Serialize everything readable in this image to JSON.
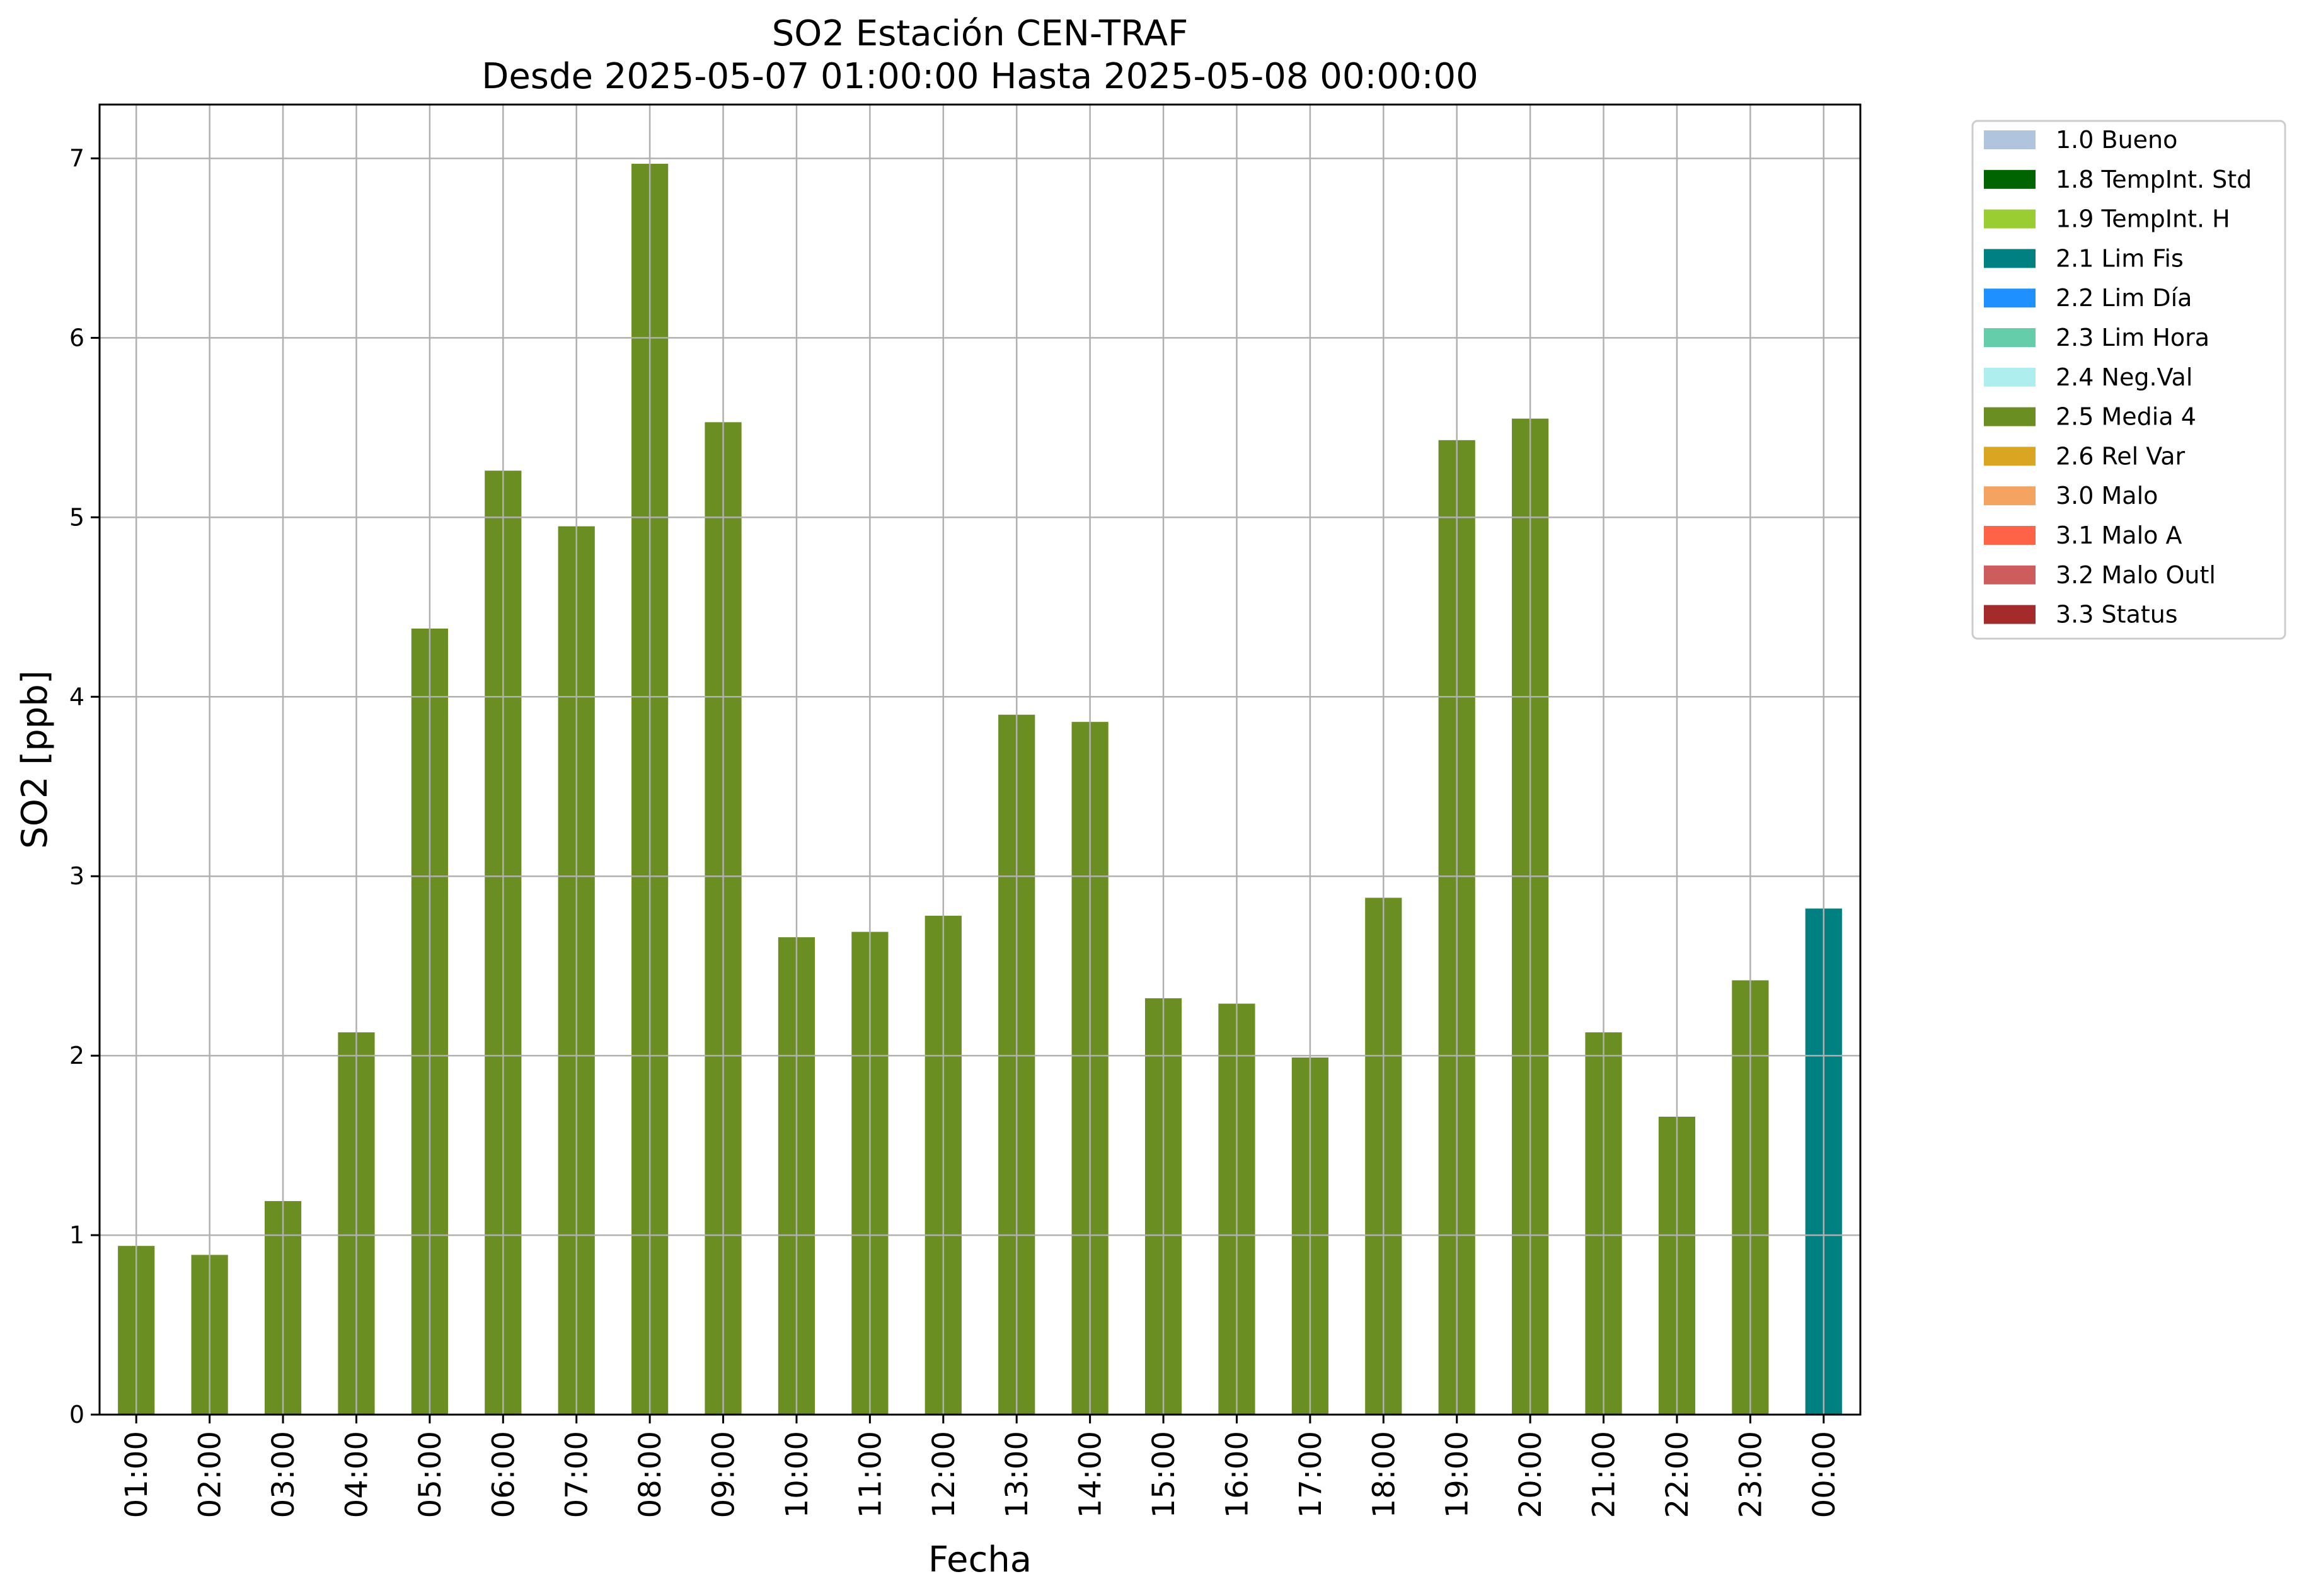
{
  "chart_data": {
    "type": "bar",
    "title": "SO2 Estación CEN-TRAF",
    "subtitle": "Desde 2025-05-07 01:00:00 Hasta 2025-05-08 00:00:00",
    "xlabel": "Fecha",
    "ylabel": "SO2 [ppb]",
    "ylim": [
      0,
      7.3
    ],
    "yticks": [
      0,
      1,
      2,
      3,
      4,
      5,
      6,
      7
    ],
    "grid": true,
    "legend_position": "outside-top-right",
    "categories": [
      "01:00",
      "02:00",
      "03:00",
      "04:00",
      "05:00",
      "06:00",
      "07:00",
      "08:00",
      "09:00",
      "10:00",
      "11:00",
      "12:00",
      "13:00",
      "14:00",
      "15:00",
      "16:00",
      "17:00",
      "18:00",
      "19:00",
      "20:00",
      "21:00",
      "22:00",
      "23:00",
      "00:00"
    ],
    "values": [
      0.94,
      0.89,
      1.19,
      2.13,
      4.38,
      5.26,
      4.95,
      6.97,
      5.53,
      2.66,
      2.69,
      2.78,
      3.9,
      3.86,
      2.32,
      2.29,
      1.99,
      2.88,
      5.43,
      5.55,
      2.13,
      1.66,
      2.42,
      2.82
    ],
    "flags": [
      "2.5 Media 4",
      "2.5 Media 4",
      "2.5 Media 4",
      "2.5 Media 4",
      "2.5 Media 4",
      "2.5 Media 4",
      "2.5 Media 4",
      "2.5 Media 4",
      "2.5 Media 4",
      "2.5 Media 4",
      "2.5 Media 4",
      "2.5 Media 4",
      "2.5 Media 4",
      "2.5 Media 4",
      "2.5 Media 4",
      "2.5 Media 4",
      "2.5 Media 4",
      "2.5 Media 4",
      "2.5 Media 4",
      "2.5 Media 4",
      "2.5 Media 4",
      "2.5 Media 4",
      "2.5 Media 4",
      "2.1 Lim Fis"
    ],
    "legend": [
      {
        "label": "1.0 Bueno",
        "color": "#b0c4de"
      },
      {
        "label": "1.8 TempInt. Std",
        "color": "#006400"
      },
      {
        "label": "1.9 TempInt. H",
        "color": "#9acd32"
      },
      {
        "label": "2.1 Lim Fis",
        "color": "#008080"
      },
      {
        "label": "2.2 Lim Día",
        "color": "#1e90ff"
      },
      {
        "label": "2.3 Lim Hora",
        "color": "#66cdaa"
      },
      {
        "label": "2.4 Neg.Val",
        "color": "#afeeee"
      },
      {
        "label": "2.5 Media 4",
        "color": "#6b8e23"
      },
      {
        "label": "2.6 Rel Var",
        "color": "#daa520"
      },
      {
        "label": "3.0 Malo",
        "color": "#f4a460"
      },
      {
        "label": "3.1 Malo A",
        "color": "#ff6347"
      },
      {
        "label": "3.2 Malo Outl",
        "color": "#cd5c5c"
      },
      {
        "label": "3.3 Status",
        "color": "#a52a2a"
      }
    ]
  }
}
